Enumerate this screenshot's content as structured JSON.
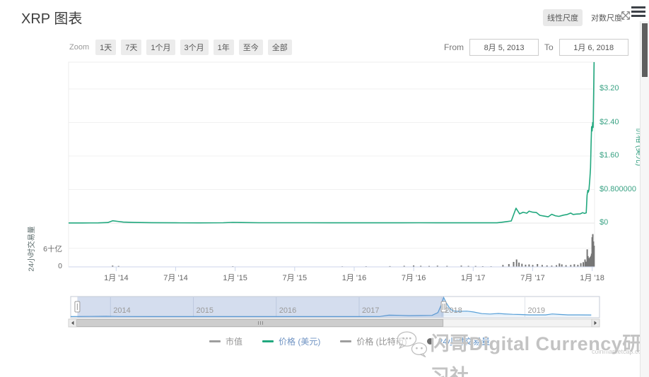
{
  "header": {
    "title": "XRP 图表",
    "scale_linear": "线性尺度",
    "scale_log": "对数尺度"
  },
  "toolbar": {
    "zoom_label": "Zoom",
    "ranges": [
      "1天",
      "7天",
      "1个月",
      "3个月",
      "1年",
      "至今",
      "全部"
    ],
    "from_label": "From",
    "from_value": "8月 5, 2013",
    "to_label": "To",
    "to_value": "1月 6, 2018"
  },
  "legend": {
    "items": [
      {
        "label": "市值",
        "active": false
      },
      {
        "label": "价格 (美元)",
        "active": true
      },
      {
        "label": "价格 (比特币)",
        "active": false
      },
      {
        "label": "24小时交易量",
        "active": true
      }
    ]
  },
  "watermark": {
    "text": "闪哥Digital Currency研习社",
    "site": "coinmarketcap.com"
  },
  "chart_data": {
    "type": "line",
    "title": "XRP 图表",
    "grid": "horizontal-only",
    "price_axis": {
      "title": "价格 (美元)",
      "labels": [
        "$3.20",
        "$2.40",
        "$1.60",
        "$0.800000",
        "$0"
      ],
      "tick_values_usd": [
        3.2,
        2.4,
        1.6,
        0.8,
        0
      ],
      "range_usd": [
        0,
        3.84
      ],
      "color": "#3aa284",
      "position": "right"
    },
    "volume_axis": {
      "title": "24小时交易量",
      "labels": [
        "6十亿",
        "0"
      ],
      "tick_values_billion_usd": [
        6,
        0
      ],
      "range_billion_usd": [
        0,
        10.6
      ],
      "position": "left"
    },
    "x_axis": {
      "labels": [
        "1月 '14",
        "7月 '14",
        "1月 '15",
        "7月 '15",
        "1月 '16",
        "7月 '16",
        "1月 '17",
        "7月 '17",
        "1月 '18"
      ],
      "ticks_decimal_years": [
        2014,
        2014.5,
        2015,
        2015.5,
        2016,
        2016.5,
        2017,
        2017.5,
        2018
      ],
      "range_decimal_years": [
        2013.6,
        2018.02
      ]
    },
    "series": [
      {
        "name": "价格 (美元)",
        "type": "line",
        "color": "#21a87e",
        "points": [
          [
            2013.6,
            0.004
          ],
          [
            2013.72,
            0.004
          ],
          [
            2013.85,
            0.005
          ],
          [
            2013.93,
            0.014
          ],
          [
            2013.97,
            0.055
          ],
          [
            2014.01,
            0.042
          ],
          [
            2014.06,
            0.024
          ],
          [
            2014.15,
            0.016
          ],
          [
            2014.3,
            0.01
          ],
          [
            2014.5,
            0.006
          ],
          [
            2014.7,
            0.005
          ],
          [
            2014.9,
            0.008
          ],
          [
            2014.98,
            0.017
          ],
          [
            2015.05,
            0.013
          ],
          [
            2015.2,
            0.009
          ],
          [
            2015.4,
            0.008
          ],
          [
            2015.6,
            0.008
          ],
          [
            2015.8,
            0.006
          ],
          [
            2016.0,
            0.007
          ],
          [
            2016.2,
            0.007
          ],
          [
            2016.4,
            0.006
          ],
          [
            2016.55,
            0.008
          ],
          [
            2016.7,
            0.007
          ],
          [
            2016.85,
            0.006
          ],
          [
            2017.0,
            0.006
          ],
          [
            2017.12,
            0.006
          ],
          [
            2017.2,
            0.007
          ],
          [
            2017.24,
            0.021
          ],
          [
            2017.28,
            0.036
          ],
          [
            2017.32,
            0.05
          ],
          [
            2017.36,
            0.355
          ],
          [
            2017.39,
            0.22
          ],
          [
            2017.42,
            0.26
          ],
          [
            2017.45,
            0.235
          ],
          [
            2017.47,
            0.285
          ],
          [
            2017.5,
            0.26
          ],
          [
            2017.53,
            0.255
          ],
          [
            2017.56,
            0.185
          ],
          [
            2017.6,
            0.165
          ],
          [
            2017.63,
            0.15
          ],
          [
            2017.66,
            0.21
          ],
          [
            2017.69,
            0.175
          ],
          [
            2017.72,
            0.16
          ],
          [
            2017.76,
            0.19
          ],
          [
            2017.79,
            0.205
          ],
          [
            2017.82,
            0.24
          ],
          [
            2017.84,
            0.205
          ],
          [
            2017.87,
            0.215
          ],
          [
            2017.9,
            0.22
          ],
          [
            2017.92,
            0.25
          ],
          [
            2017.935,
            0.23
          ],
          [
            2017.95,
            0.245
          ],
          [
            2017.957,
            0.66
          ],
          [
            2017.963,
            0.78
          ],
          [
            2017.968,
            0.74
          ],
          [
            2017.973,
            0.8
          ],
          [
            2017.98,
            1.05
          ],
          [
            2017.986,
            1.32
          ],
          [
            2017.991,
            1.9
          ],
          [
            2017.995,
            2.3
          ],
          [
            2018.0,
            2.2
          ],
          [
            2018.004,
            2.4
          ],
          [
            2018.008,
            2.28
          ],
          [
            2018.012,
            3.1
          ],
          [
            2018.016,
            3.84
          ]
        ]
      },
      {
        "name": "24小时交易量",
        "type": "bar",
        "unit": "十亿美元",
        "color": "#767676",
        "points": [
          [
            2013.97,
            0.3
          ],
          [
            2014.02,
            0.18
          ],
          [
            2014.98,
            0.1
          ],
          [
            2015.9,
            0.08
          ],
          [
            2016.1,
            0.1
          ],
          [
            2016.3,
            0.14
          ],
          [
            2016.42,
            0.22
          ],
          [
            2016.5,
            0.34
          ],
          [
            2016.56,
            0.24
          ],
          [
            2016.63,
            0.18
          ],
          [
            2016.7,
            0.28
          ],
          [
            2016.78,
            0.2
          ],
          [
            2016.9,
            0.3
          ],
          [
            2016.96,
            0.2
          ],
          [
            2017.02,
            0.18
          ],
          [
            2017.08,
            0.12
          ],
          [
            2017.15,
            0.1
          ],
          [
            2017.25,
            0.5
          ],
          [
            2017.3,
            0.8
          ],
          [
            2017.34,
            1.5
          ],
          [
            2017.365,
            2.3
          ],
          [
            2017.385,
            1.3
          ],
          [
            2017.41,
            0.9
          ],
          [
            2017.44,
            0.6
          ],
          [
            2017.47,
            0.7
          ],
          [
            2017.5,
            0.5
          ],
          [
            2017.54,
            0.8
          ],
          [
            2017.58,
            0.5
          ],
          [
            2017.62,
            0.35
          ],
          [
            2017.66,
            0.3
          ],
          [
            2017.7,
            0.45
          ],
          [
            2017.725,
            1.0
          ],
          [
            2017.745,
            0.7
          ],
          [
            2017.78,
            0.45
          ],
          [
            2017.82,
            0.5
          ],
          [
            2017.85,
            0.75
          ],
          [
            2017.88,
            0.55
          ],
          [
            2017.905,
            1.1
          ],
          [
            2017.925,
            1.4
          ],
          [
            2017.94,
            2.3
          ],
          [
            2017.95,
            1.6
          ],
          [
            2017.958,
            5.6
          ],
          [
            2017.965,
            3.4
          ],
          [
            2017.972,
            2.8
          ],
          [
            2017.978,
            2.4
          ],
          [
            2017.984,
            3.1
          ],
          [
            2017.99,
            3.5
          ],
          [
            2017.995,
            4.2
          ],
          [
            2018.0,
            9.6
          ],
          [
            2018.005,
            10.6
          ],
          [
            2018.01,
            8.2
          ],
          [
            2018.016,
            6.8
          ]
        ]
      }
    ],
    "navigator": {
      "year_labels": [
        "2014",
        "2015",
        "2016",
        "2017",
        "2018",
        "2019"
      ],
      "year_values": [
        2014,
        2015,
        2016,
        2017,
        2018,
        2019
      ],
      "range_decimal_years": [
        2013.52,
        2019.9
      ],
      "selected_range_years": [
        2013.6,
        2018.02
      ],
      "selected_from_label": "8月 5, 2013",
      "selected_to_label": "1月 6, 2018",
      "line_color": "#58a0d8",
      "points": [
        [
          2013.52,
          0.01
        ],
        [
          2013.95,
          0.06
        ],
        [
          2014.1,
          0.02
        ],
        [
          2014.5,
          0.008
        ],
        [
          2014.97,
          0.017
        ],
        [
          2015.3,
          0.009
        ],
        [
          2016.0,
          0.007
        ],
        [
          2016.5,
          0.007
        ],
        [
          2017.0,
          0.007
        ],
        [
          2017.25,
          0.03
        ],
        [
          2017.36,
          0.25
        ],
        [
          2017.5,
          0.22
        ],
        [
          2017.6,
          0.17
        ],
        [
          2017.75,
          0.2
        ],
        [
          2017.88,
          0.22
        ],
        [
          2017.95,
          0.7
        ],
        [
          2017.99,
          2.0
        ],
        [
          2018.02,
          3.3
        ],
        [
          2018.05,
          2.4
        ],
        [
          2018.09,
          1.5
        ],
        [
          2018.13,
          1.0
        ],
        [
          2018.2,
          0.92
        ],
        [
          2018.3,
          0.95
        ],
        [
          2018.38,
          0.8
        ],
        [
          2018.48,
          0.52
        ],
        [
          2018.58,
          0.45
        ],
        [
          2018.68,
          0.55
        ],
        [
          2018.75,
          0.47
        ],
        [
          2018.85,
          0.4
        ],
        [
          2018.95,
          0.37
        ],
        [
          2019.05,
          0.31
        ],
        [
          2019.15,
          0.3
        ],
        [
          2019.25,
          0.3
        ],
        [
          2019.33,
          0.46
        ],
        [
          2019.42,
          0.38
        ],
        [
          2019.52,
          0.31
        ],
        [
          2019.65,
          0.3
        ],
        [
          2019.8,
          0.29
        ]
      ]
    }
  }
}
